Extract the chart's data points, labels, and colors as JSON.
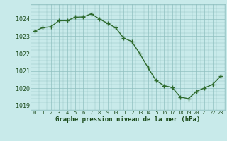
{
  "hours": [
    0,
    1,
    2,
    3,
    4,
    5,
    6,
    7,
    8,
    9,
    10,
    11,
    12,
    13,
    14,
    15,
    16,
    17,
    18,
    19,
    20,
    21,
    22,
    23
  ],
  "pressure": [
    1023.3,
    1023.5,
    1023.55,
    1023.9,
    1023.9,
    1024.1,
    1024.12,
    1024.3,
    1024.0,
    1023.75,
    1023.5,
    1022.9,
    1022.7,
    1022.0,
    1021.2,
    1020.45,
    1020.15,
    1020.05,
    1019.5,
    1019.4,
    1019.82,
    1020.02,
    1020.22,
    1020.7
  ],
  "line_color": "#2d6a2d",
  "marker_color": "#2d6a2d",
  "bg_color": "#c8eaea",
  "grid_color": "#8fbfbf",
  "xlabel": "Graphe pression niveau de la mer (hPa)",
  "xlabel_color": "#1a4a1a",
  "tick_color": "#1a4a1a",
  "ylim": [
    1018.75,
    1024.85
  ],
  "yticks": [
    1019,
    1020,
    1021,
    1022,
    1023,
    1024
  ],
  "marker_size": 4.0,
  "line_width": 1.0
}
